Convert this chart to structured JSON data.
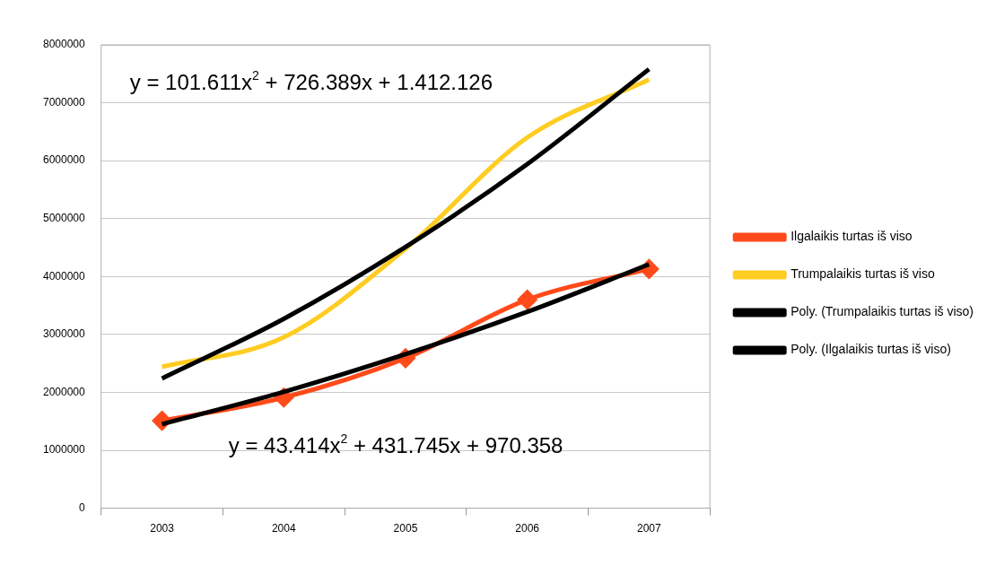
{
  "chart_data": {
    "type": "line",
    "categories": [
      "2003",
      "2004",
      "2005",
      "2006",
      "2007"
    ],
    "series": [
      {
        "name": "Ilgalaikis turtas iš viso",
        "color": "#ff4a1a",
        "marker": "diamond",
        "values": [
          1510000,
          1910000,
          2590000,
          3600000,
          4130000
        ]
      },
      {
        "name": "Trumpalaikis turtas iš viso",
        "color": "#ffcc22",
        "marker": "none",
        "values": [
          2440000,
          2950000,
          4480000,
          6400000,
          7400000
        ]
      },
      {
        "name": "Poly. (Trumpalaikis turtas iš viso)",
        "type": "line",
        "color": "#000000",
        "marker": "none",
        "values": [
          2240000,
          3270000,
          4510000,
          5940000,
          7580000
        ]
      },
      {
        "name": "Poly. (Ilgalaikis turtas iš viso)",
        "type": "line",
        "color": "#000000",
        "marker": "none",
        "values": [
          1450000,
          2010000,
          2660000,
          3390000,
          4210000
        ]
      }
    ],
    "ylim": [
      0,
      8000000
    ],
    "yticks": [
      0,
      1000000,
      2000000,
      3000000,
      4000000,
      5000000,
      6000000,
      7000000,
      8000000
    ],
    "grid": "y",
    "legend": "right",
    "annotations": [
      "y = 101.611x$^{2}$ + 726.389x + 1.412.126",
      "y = 43.414x$^{2}$ + 431.745x + 970.358"
    ]
  }
}
